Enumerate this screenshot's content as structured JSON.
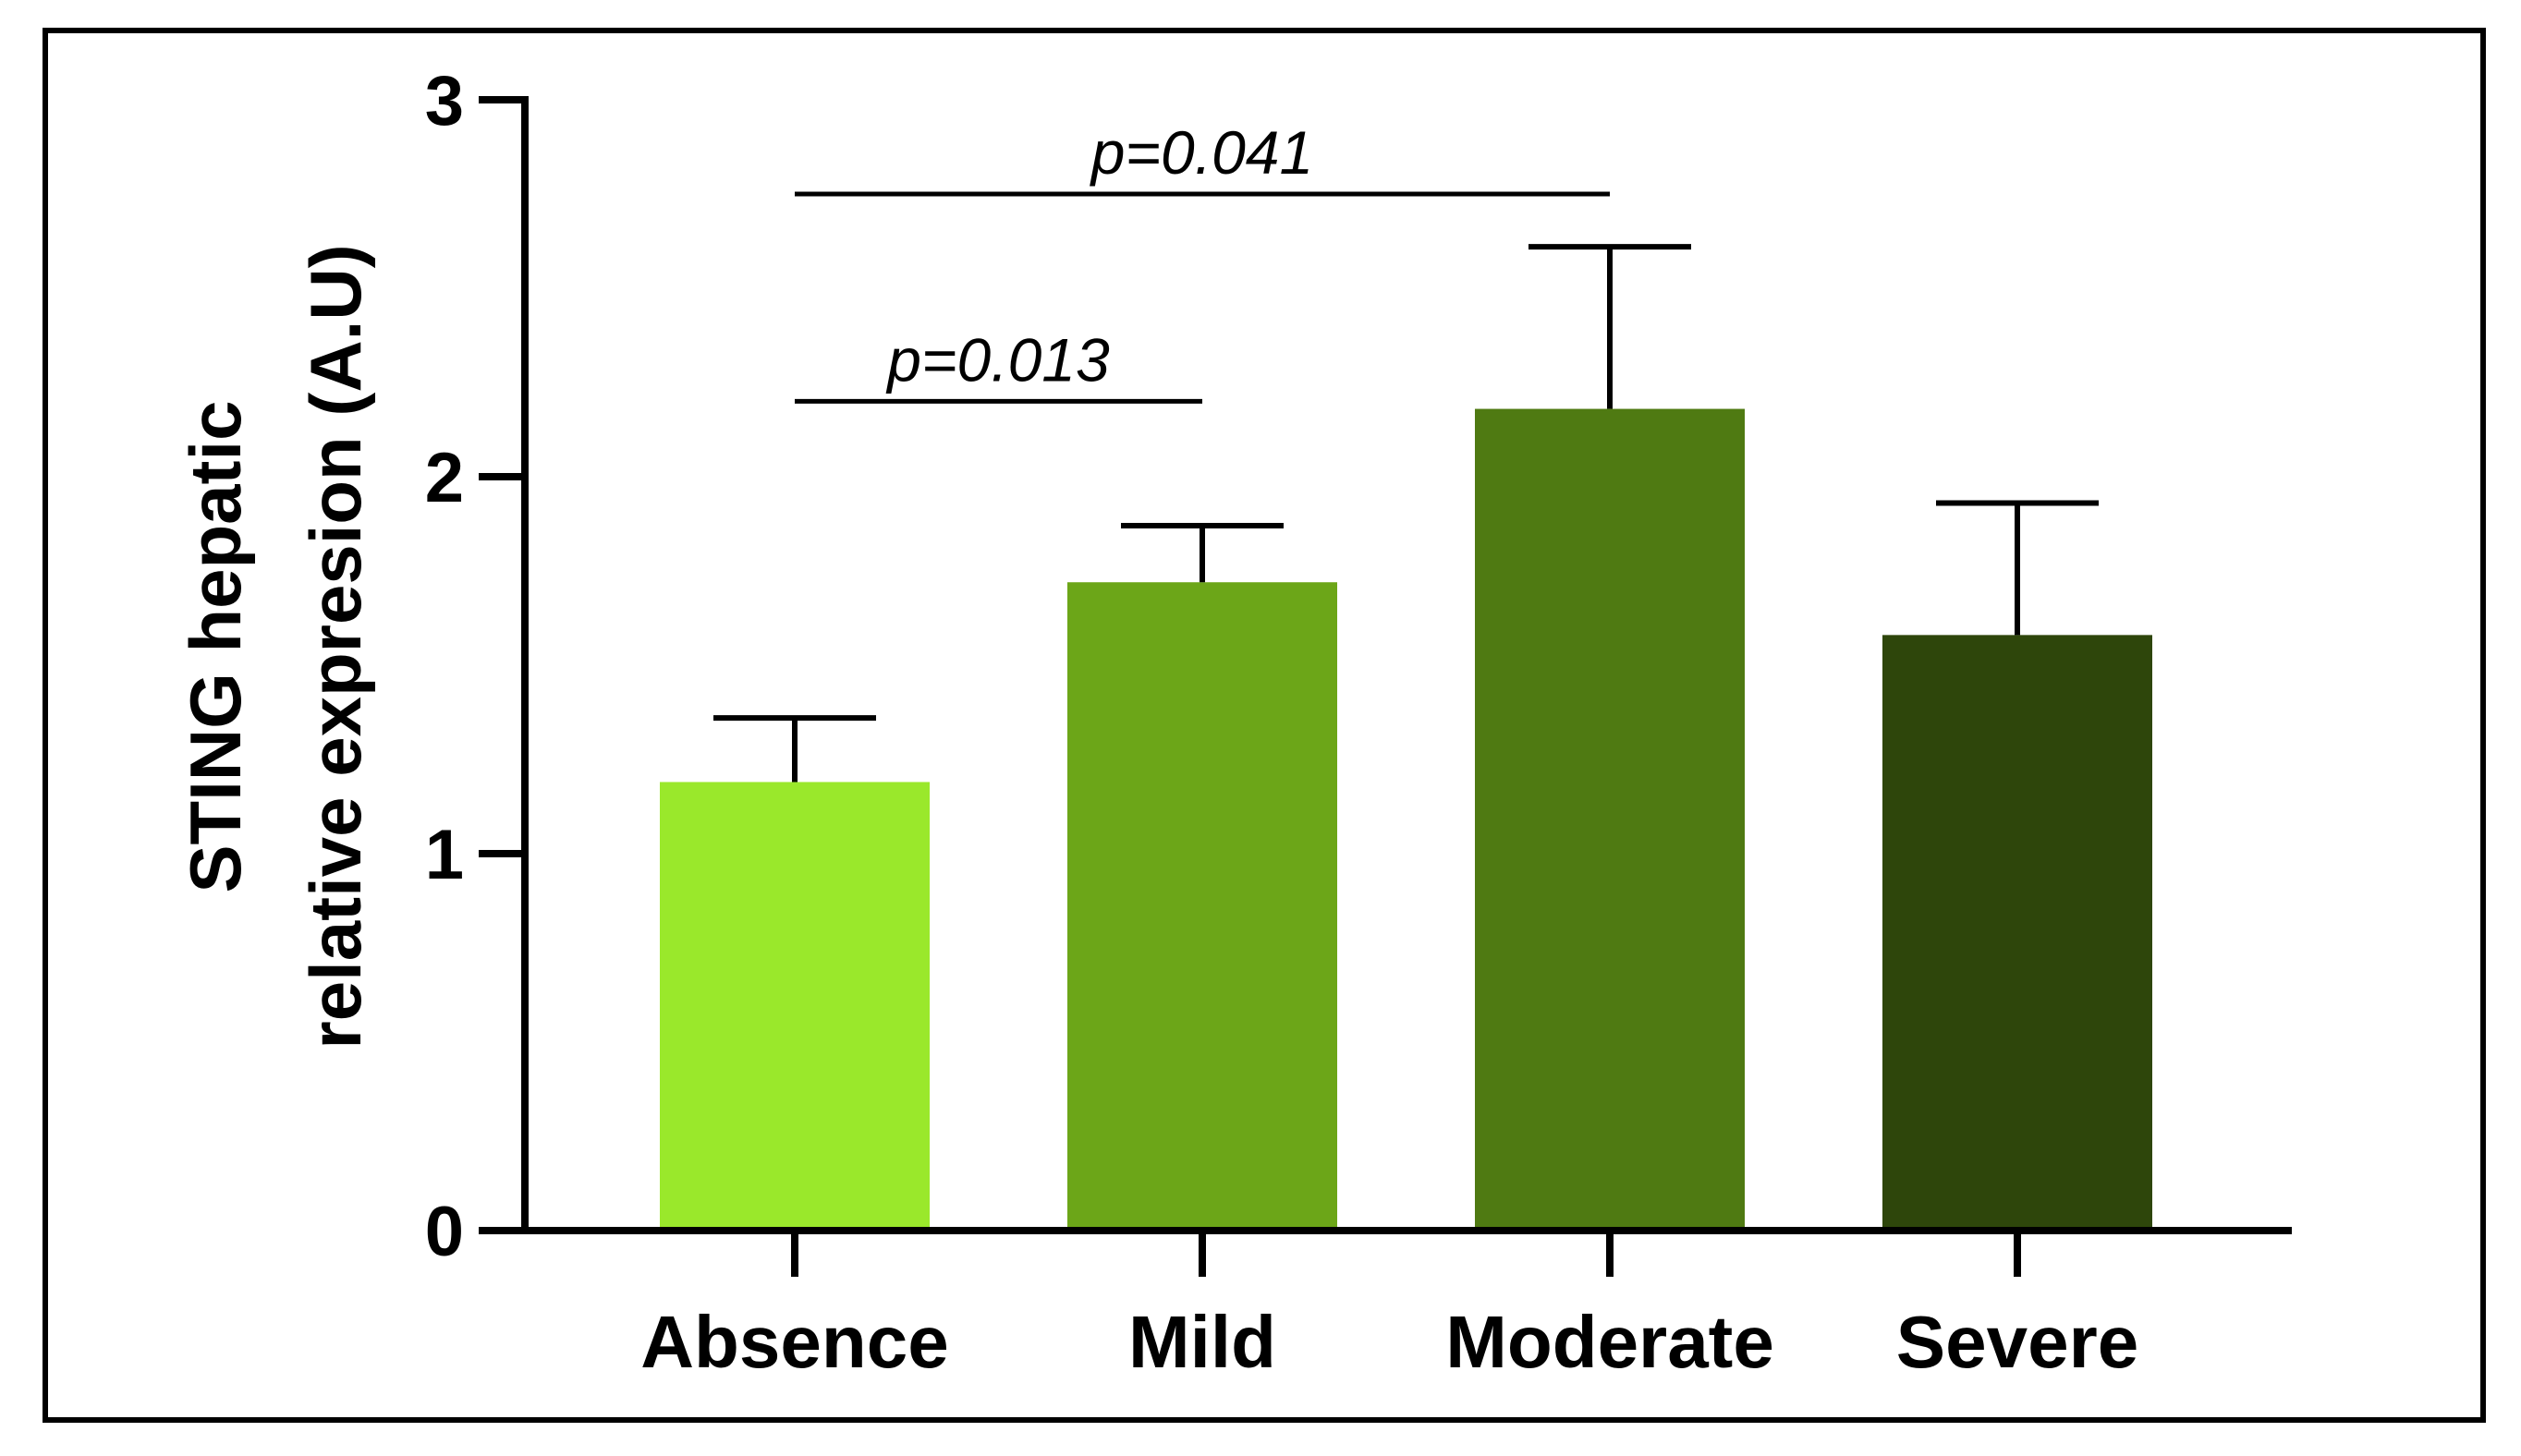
{
  "chart_data": {
    "type": "bar",
    "title": "",
    "xlabel": "",
    "ylabel_lines": [
      "STING hepatic",
      "relative expresion (A.U)"
    ],
    "categories": [
      "Absence",
      "Mild",
      "Moderate",
      "Severe"
    ],
    "values": [
      1.19,
      1.72,
      2.18,
      1.58
    ],
    "error_upper": [
      1.36,
      1.87,
      2.61,
      1.93
    ],
    "colors": [
      "#9ae82b",
      "#6ca618",
      "#4f7a12",
      "#2e460b"
    ],
    "ylim": [
      0,
      3
    ],
    "yticks": [
      "0",
      "1",
      "2",
      "3"
    ],
    "grid": false,
    "significance": [
      {
        "from": "Absence",
        "to": "Mild",
        "level": 2.2,
        "label": "p=0.013"
      },
      {
        "from": "Absence",
        "to": "Moderate",
        "level": 2.75,
        "label": "p=0.041"
      }
    ]
  }
}
